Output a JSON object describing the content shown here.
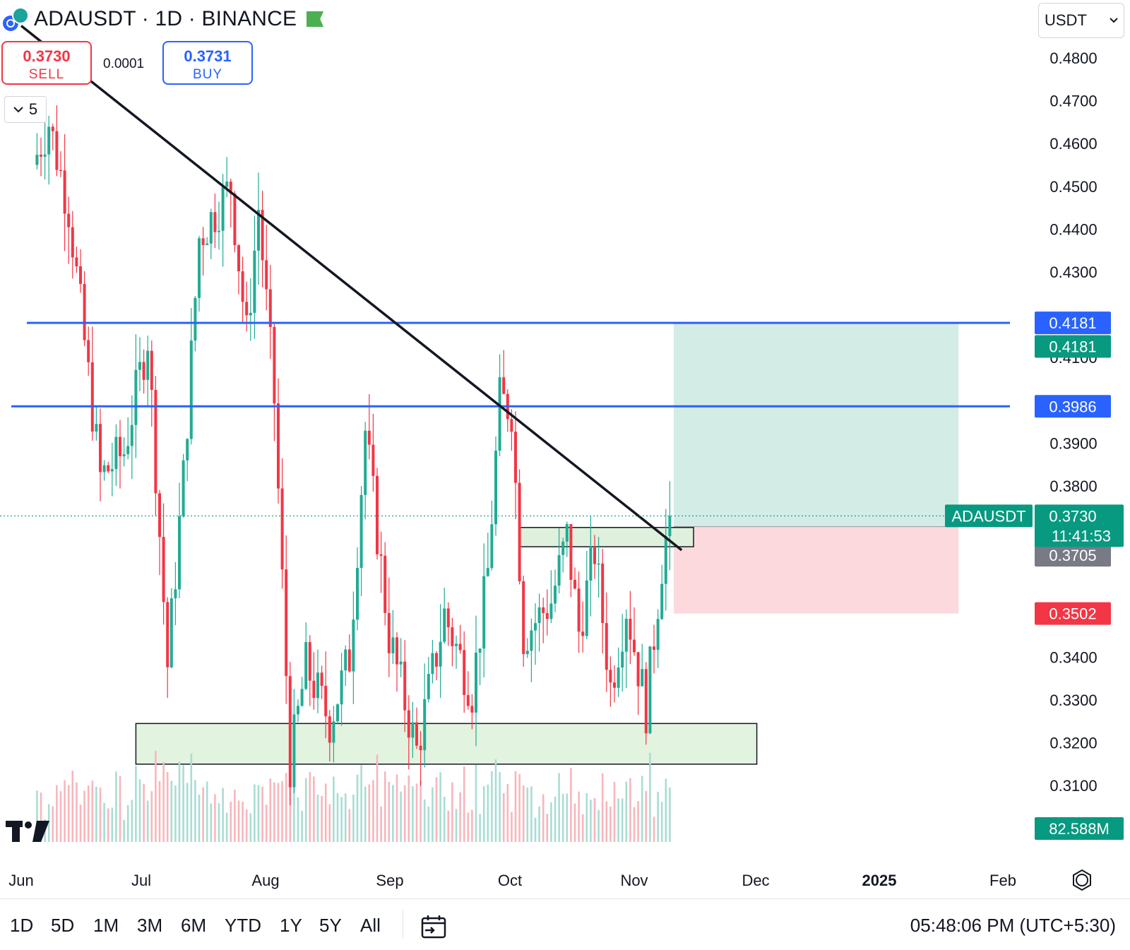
{
  "header": {
    "title": "ADAUSDT · 1D · BINANCE",
    "sell_price": "0.3730",
    "sell_label": "SELL",
    "spread": "0.0001",
    "buy_price": "0.3731",
    "buy_label": "BUY",
    "lot_size": "5",
    "currency": "USDT"
  },
  "colors": {
    "up": "#22ab94",
    "down": "#f23645",
    "level_line": "#2962ff",
    "accent": "#089981"
  },
  "chart_data": {
    "type": "candlestick",
    "symbol": "ADAUSDT",
    "interval": "1D",
    "exchange": "BINANCE",
    "y_range": [
      0.305,
      0.485
    ],
    "y_ticks": [
      "0.4800",
      "0.4700",
      "0.4600",
      "0.4500",
      "0.4400",
      "0.4300",
      "0.4100",
      "0.3900",
      "0.3800",
      "0.3400",
      "0.3300",
      "0.3200",
      "0.3100"
    ],
    "x_ticks": [
      {
        "label": "Jun",
        "bold": false
      },
      {
        "label": "Jul",
        "bold": false
      },
      {
        "label": "Aug",
        "bold": false
      },
      {
        "label": "Sep",
        "bold": false
      },
      {
        "label": "Oct",
        "bold": false
      },
      {
        "label": "Nov",
        "bold": false
      },
      {
        "label": "Dec",
        "bold": false
      },
      {
        "label": "2025",
        "bold": true
      },
      {
        "label": "Feb",
        "bold": false
      }
    ],
    "price_labels": [
      {
        "value": "0.4181",
        "y": 0.4181,
        "color": "#2962ff"
      },
      {
        "value": "0.4181",
        "y": 0.4126,
        "color": "#089981"
      },
      {
        "value": "0.3986",
        "y": 0.3986,
        "color": "#2962ff"
      },
      {
        "value": "0.3705",
        "y": 0.3638,
        "color": "#787b86"
      },
      {
        "value": "0.3502",
        "y": 0.3502,
        "color": "#f23645"
      }
    ],
    "last_price": {
      "symbol": "ADAUSDT",
      "value": "0.3730",
      "countdown": "11:41:53",
      "y": 0.373
    },
    "volume_label": "82.588M",
    "horizontal_levels": [
      0.4181,
      0.3986
    ],
    "position": {
      "entry": 0.3705,
      "target": 0.4181,
      "stop": 0.3502
    },
    "trendline": {
      "from": {
        "date": "2024-05-28",
        "price": 0.4875
      },
      "to": {
        "date": "2024-11-11",
        "price": 0.365
      }
    },
    "zones": [
      {
        "from_date": "2024-06-26",
        "to_date": "2024-11-30",
        "top": 0.3245,
        "bottom": 0.315,
        "color": "#e2f3e0"
      },
      {
        "from_date": "2024-10-01",
        "to_date": "2024-11-14",
        "top": 0.3703,
        "bottom": 0.3658,
        "color": "#dff0dc"
      }
    ],
    "swings": [
      {
        "date": "2024-06-01",
        "price": 0.455
      },
      {
        "date": "2024-06-05",
        "price": 0.465
      },
      {
        "date": "2024-06-10",
        "price": 0.445
      },
      {
        "date": "2024-06-18",
        "price": 0.382
      },
      {
        "date": "2024-06-24",
        "price": 0.388
      },
      {
        "date": "2024-06-30",
        "price": 0.415
      },
      {
        "date": "2024-07-05",
        "price": 0.338
      },
      {
        "date": "2024-07-09",
        "price": 0.382
      },
      {
        "date": "2024-07-13",
        "price": 0.438
      },
      {
        "date": "2024-07-21",
        "price": 0.45
      },
      {
        "date": "2024-07-25",
        "price": 0.415
      },
      {
        "date": "2024-07-28",
        "price": 0.445
      },
      {
        "date": "2024-08-01",
        "price": 0.4
      },
      {
        "date": "2024-08-05",
        "price": 0.315
      },
      {
        "date": "2024-08-09",
        "price": 0.338
      },
      {
        "date": "2024-08-15",
        "price": 0.325
      },
      {
        "date": "2024-08-20",
        "price": 0.34
      },
      {
        "date": "2024-08-24",
        "price": 0.393
      },
      {
        "date": "2024-08-30",
        "price": 0.345
      },
      {
        "date": "2024-09-06",
        "price": 0.318
      },
      {
        "date": "2024-09-13",
        "price": 0.35
      },
      {
        "date": "2024-09-20",
        "price": 0.332
      },
      {
        "date": "2024-09-24",
        "price": 0.36
      },
      {
        "date": "2024-09-27",
        "price": 0.4
      },
      {
        "date": "2024-09-30",
        "price": 0.398
      },
      {
        "date": "2024-10-03",
        "price": 0.345
      },
      {
        "date": "2024-10-10",
        "price": 0.353
      },
      {
        "date": "2024-10-14",
        "price": 0.368
      },
      {
        "date": "2024-10-17",
        "price": 0.346
      },
      {
        "date": "2024-10-21",
        "price": 0.365
      },
      {
        "date": "2024-10-25",
        "price": 0.333
      },
      {
        "date": "2024-10-29",
        "price": 0.352
      },
      {
        "date": "2024-11-03",
        "price": 0.328
      },
      {
        "date": "2024-11-07",
        "price": 0.362
      },
      {
        "date": "2024-11-09",
        "price": 0.373
      }
    ]
  },
  "footer": {
    "ranges": [
      "1D",
      "5D",
      "1M",
      "3M",
      "6M",
      "YTD",
      "1Y",
      "5Y",
      "All"
    ],
    "clock": "05:48:06 PM (UTC+5:30)"
  }
}
